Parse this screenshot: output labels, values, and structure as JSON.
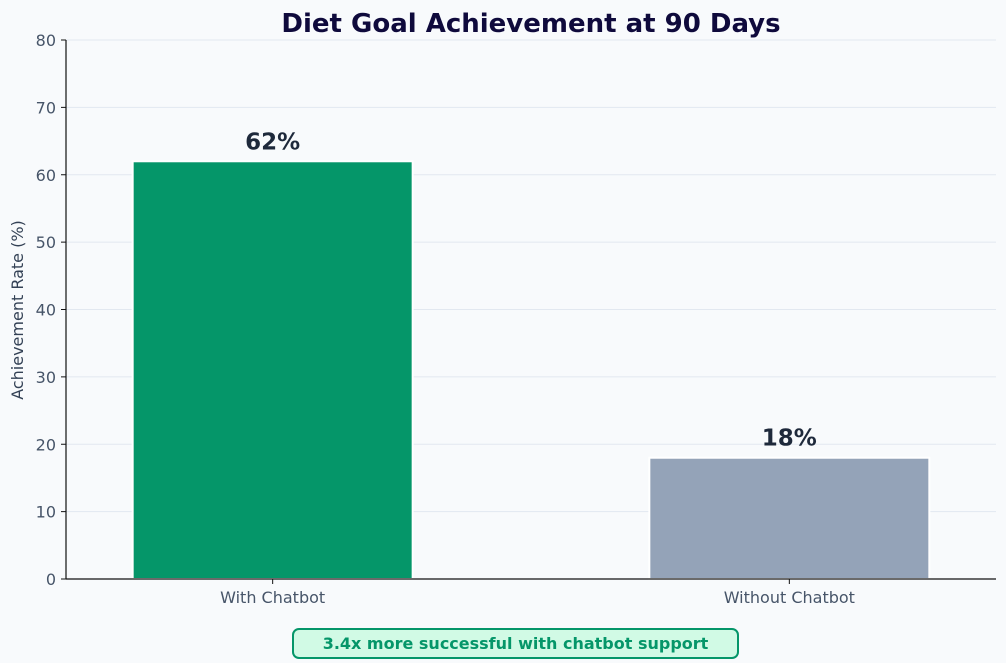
{
  "chart_data": {
    "type": "bar",
    "title": "Diet Goal Achievement at 90 Days",
    "xlabel": "",
    "ylabel": "Achievement Rate (%)",
    "categories": [
      "With Chatbot",
      "Without Chatbot"
    ],
    "values": [
      62,
      18
    ],
    "data_labels": [
      "62%",
      "18%"
    ],
    "ylim": [
      0,
      80
    ],
    "yticks": [
      0,
      10,
      20,
      30,
      40,
      50,
      60,
      70,
      80
    ],
    "grid": true,
    "bar_colors": [
      "#059669",
      "#94a3b8"
    ],
    "annotation": "3.4x more successful with chatbot support"
  },
  "colors": {
    "background": "#f8fafc",
    "title": "#0f0a3c",
    "tick_text": "#475569",
    "axis_label": "#334155",
    "data_label": "#1e293b",
    "grid": "#e2e8f0",
    "axis": "#111111",
    "accent": "#059669",
    "annotation_bg": "#d1fae5"
  }
}
